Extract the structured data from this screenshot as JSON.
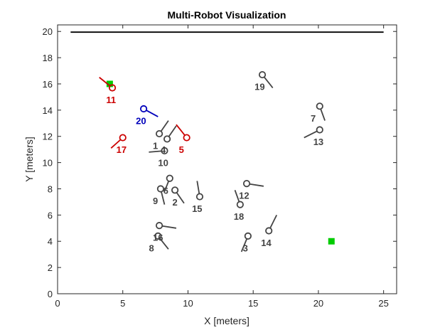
{
  "chart_data": {
    "type": "scatter",
    "title": "Multi-Robot Visualization",
    "xlabel": "X [meters]",
    "ylabel": "Y [meters]",
    "xlim": [
      0,
      26
    ],
    "ylim": [
      0,
      20.5
    ],
    "xticks": [
      "0",
      "5",
      "10",
      "15",
      "20",
      "25"
    ],
    "xtick_values": [
      0,
      5,
      10,
      15,
      20,
      25
    ],
    "yticks": [
      "0",
      "2",
      "4",
      "6",
      "8",
      "10",
      "12",
      "14",
      "16",
      "18",
      "20"
    ],
    "ytick_values": [
      0,
      2,
      4,
      6,
      8,
      10,
      12,
      14,
      16,
      18,
      20
    ],
    "grid": false,
    "walls": {
      "outer": [
        1,
        1,
        25,
        20
      ],
      "inner": [
        1,
        1,
        25,
        19.9
      ]
    },
    "colors": {
      "gray": "#444444",
      "label_gray": "#444444",
      "red": "#cc0000",
      "blue": "#0000bb",
      "goal": "#00cc00",
      "wall": "#000000"
    },
    "goals": [
      {
        "x": 4.0,
        "y": 16.0
      },
      {
        "x": 21.0,
        "y": 4.0
      }
    ],
    "robots": [
      {
        "id": "1",
        "x": 7.8,
        "y": 12.2,
        "dx": 0.7,
        "dy": 1.0,
        "lx": 7.5,
        "ly": 11.3,
        "color": "gray"
      },
      {
        "id": "2",
        "x": 9.0,
        "y": 7.9,
        "dx": 0.7,
        "dy": -1.0,
        "lx": 9.0,
        "ly": 7.0,
        "color": "gray"
      },
      {
        "id": "3",
        "x": 14.6,
        "y": 4.4,
        "dx": -0.5,
        "dy": -1.2,
        "lx": 14.4,
        "ly": 3.5,
        "color": "gray"
      },
      {
        "id": "4",
        "x": 8.4,
        "y": 11.8,
        "dx": 0.7,
        "dy": 1.0,
        "lx": 8.1,
        "ly": 11.0,
        "color": "gray"
      },
      {
        "id": "5",
        "x": 9.9,
        "y": 11.9,
        "dx": -0.8,
        "dy": 1.0,
        "lx": 9.5,
        "ly": 11.0,
        "color": "red"
      },
      {
        "id": "6",
        "x": 8.6,
        "y": 8.8,
        "dx": -0.4,
        "dy": -1.0,
        "lx": 8.3,
        "ly": 7.9,
        "color": "gray"
      },
      {
        "id": "7",
        "x": 20.1,
        "y": 14.3,
        "dx": 0.4,
        "dy": -1.1,
        "lx": 19.6,
        "ly": 13.4,
        "color": "gray"
      },
      {
        "id": "8",
        "x": 7.7,
        "y": 4.4,
        "dx": 0.8,
        "dy": -1.0,
        "lx": 7.2,
        "ly": 3.5,
        "color": "gray"
      },
      {
        "id": "9",
        "x": 7.9,
        "y": 8.0,
        "dx": 0.3,
        "dy": -1.2,
        "lx": 7.5,
        "ly": 7.1,
        "color": "gray"
      },
      {
        "id": "10",
        "x": 8.2,
        "y": 10.9,
        "dx": -1.2,
        "dy": -0.1,
        "lx": 8.1,
        "ly": 10.0,
        "color": "gray"
      },
      {
        "id": "11",
        "x": 4.2,
        "y": 15.7,
        "dx": -1.0,
        "dy": 0.8,
        "lx": 4.1,
        "ly": 14.8,
        "color": "red"
      },
      {
        "id": "12",
        "x": 14.5,
        "y": 8.4,
        "dx": 1.3,
        "dy": -0.2,
        "lx": 14.3,
        "ly": 7.5,
        "color": "gray"
      },
      {
        "id": "13",
        "x": 20.1,
        "y": 12.5,
        "dx": -1.2,
        "dy": -0.6,
        "lx": 20.0,
        "ly": 11.6,
        "color": "gray"
      },
      {
        "id": "14",
        "x": 16.2,
        "y": 4.8,
        "dx": 0.6,
        "dy": 1.2,
        "lx": 16.0,
        "ly": 3.9,
        "color": "gray"
      },
      {
        "id": "15",
        "x": 10.9,
        "y": 7.4,
        "dx": -0.2,
        "dy": 1.2,
        "lx": 10.7,
        "ly": 6.5,
        "color": "gray"
      },
      {
        "id": "16",
        "x": 7.8,
        "y": 5.2,
        "dx": 1.3,
        "dy": -0.2,
        "lx": 7.7,
        "ly": 4.3,
        "color": "gray"
      },
      {
        "id": "17",
        "x": 5.0,
        "y": 11.9,
        "dx": -0.9,
        "dy": -0.8,
        "lx": 4.9,
        "ly": 11.0,
        "color": "red"
      },
      {
        "id": "18",
        "x": 14.0,
        "y": 6.8,
        "dx": -0.4,
        "dy": 1.1,
        "lx": 13.9,
        "ly": 5.9,
        "color": "gray"
      },
      {
        "id": "19",
        "x": 15.7,
        "y": 16.7,
        "dx": 0.8,
        "dy": -1.0,
        "lx": 15.5,
        "ly": 15.8,
        "color": "gray"
      },
      {
        "id": "20",
        "x": 6.6,
        "y": 14.1,
        "dx": 1.1,
        "dy": -0.6,
        "lx": 6.4,
        "ly": 13.2,
        "color": "blue"
      }
    ]
  }
}
